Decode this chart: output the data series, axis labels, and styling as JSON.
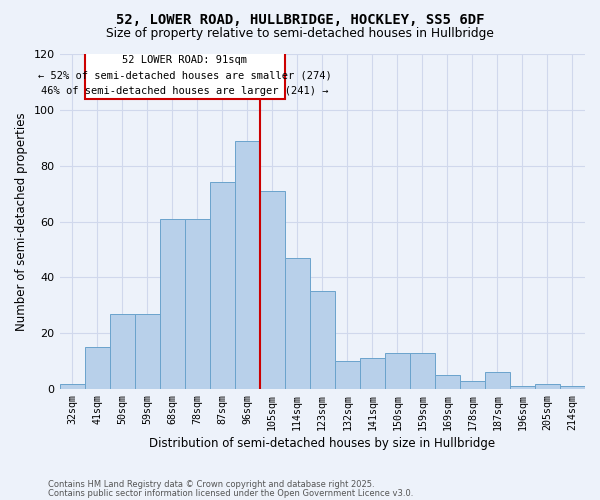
{
  "title": "52, LOWER ROAD, HULLBRIDGE, HOCKLEY, SS5 6DF",
  "subtitle": "Size of property relative to semi-detached houses in Hullbridge",
  "xlabel": "Distribution of semi-detached houses by size in Hullbridge",
  "ylabel": "Number of semi-detached properties",
  "bar_color": "#b8d0ea",
  "bar_edge_color": "#6aa3cc",
  "grid_color": "#d0d8ec",
  "vline_color": "#cc0000",
  "annotation_title": "52 LOWER ROAD: 91sqm",
  "annotation_line1": "← 52% of semi-detached houses are smaller (274)",
  "annotation_line2": "46% of semi-detached houses are larger (241) →",
  "annotation_box_edgecolor": "#cc0000",
  "bins": [
    "32sqm",
    "41sqm",
    "50sqm",
    "59sqm",
    "68sqm",
    "78sqm",
    "87sqm",
    "96sqm",
    "105sqm",
    "114sqm",
    "123sqm",
    "132sqm",
    "141sqm",
    "150sqm",
    "159sqm",
    "169sqm",
    "178sqm",
    "187sqm",
    "196sqm",
    "205sqm",
    "214sqm"
  ],
  "values": [
    2,
    15,
    27,
    27,
    61,
    61,
    74,
    89,
    71,
    47,
    35,
    10,
    11,
    13,
    13,
    5,
    3,
    6,
    1,
    2,
    1
  ],
  "vline_x": 7.5,
  "ylim": [
    0,
    120
  ],
  "yticks": [
    0,
    20,
    40,
    60,
    80,
    100,
    120
  ],
  "footer1": "Contains HM Land Registry data © Crown copyright and database right 2025.",
  "footer2": "Contains public sector information licensed under the Open Government Licence v3.0.",
  "background_color": "#edf2fa",
  "fig_width": 6.0,
  "fig_height": 5.0
}
